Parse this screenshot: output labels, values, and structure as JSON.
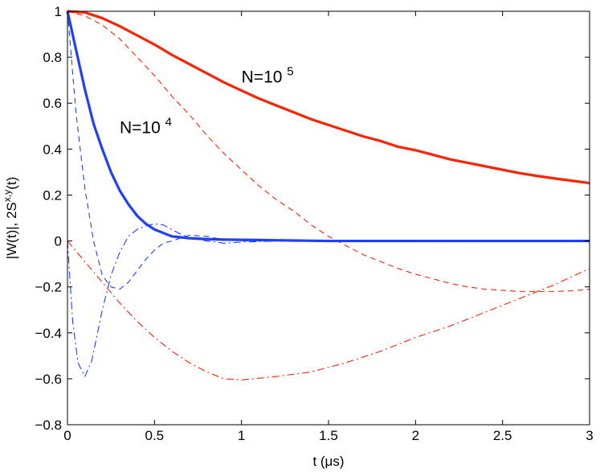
{
  "chart_data": {
    "type": "line",
    "title": "",
    "xlabel": "t (μs)",
    "ylabel_main": "|W(t)|, 2S",
    "ylabel_sup": "x,y",
    "ylabel_tail": "(t)",
    "xlim": [
      0,
      3
    ],
    "ylim": [
      -0.8,
      1
    ],
    "grid": false,
    "legend": "none",
    "x_ticks": [
      0,
      0.5,
      1,
      1.5,
      2,
      2.5,
      3
    ],
    "x_tick_labels": [
      "0",
      "0.5",
      "1",
      "1.5",
      "2",
      "2.5",
      "3"
    ],
    "y_ticks": [
      -0.8,
      -0.6,
      -0.4,
      -0.2,
      0,
      0.2,
      0.4,
      0.6,
      0.8,
      1
    ],
    "y_tick_labels": [
      "−0.8",
      "−0.6",
      "−0.4",
      "−0.2",
      "0",
      "0.2",
      "0.4",
      "0.6",
      "0.8",
      "1"
    ],
    "annotations": [
      {
        "text": "N=10",
        "sup": "5",
        "x": 1.0,
        "y": 0.69
      },
      {
        "text": "N=10",
        "sup": "4",
        "x": 0.3,
        "y": 0.47
      }
    ],
    "series": [
      {
        "color": "#ff2200",
        "style": "solid",
        "weight": "thick",
        "x": [
          0,
          0.1,
          0.2,
          0.3,
          0.4,
          0.5,
          0.6,
          0.7,
          0.8,
          0.9,
          1.0,
          1.1,
          1.2,
          1.3,
          1.4,
          1.5,
          1.6,
          1.7,
          1.8,
          1.9,
          2.0,
          2.1,
          2.2,
          2.3,
          2.4,
          2.5,
          2.6,
          2.7,
          2.8,
          2.9,
          3.0
        ],
        "y": [
          1,
          0.995,
          0.97,
          0.935,
          0.895,
          0.855,
          0.81,
          0.77,
          0.73,
          0.69,
          0.655,
          0.62,
          0.59,
          0.56,
          0.53,
          0.505,
          0.48,
          0.455,
          0.435,
          0.41,
          0.395,
          0.375,
          0.355,
          0.34,
          0.325,
          0.31,
          0.295,
          0.283,
          0.272,
          0.262,
          0.252
        ]
      },
      {
        "color": "#ff2200",
        "style": "dash",
        "weight": "thin",
        "x": [
          0,
          0.1,
          0.2,
          0.3,
          0.4,
          0.5,
          0.6,
          0.7,
          0.8,
          0.9,
          1.0,
          1.1,
          1.2,
          1.3,
          1.4,
          1.5,
          1.6,
          1.7,
          1.8,
          1.9,
          2.0,
          2.1,
          2.2,
          2.3,
          2.4,
          2.5,
          2.6,
          2.7,
          2.8,
          2.9,
          3.0
        ],
        "y": [
          1,
          0.98,
          0.94,
          0.88,
          0.8,
          0.72,
          0.63,
          0.55,
          0.46,
          0.38,
          0.31,
          0.24,
          0.18,
          0.13,
          0.07,
          0.02,
          -0.02,
          -0.06,
          -0.09,
          -0.12,
          -0.145,
          -0.165,
          -0.185,
          -0.2,
          -0.21,
          -0.215,
          -0.22,
          -0.22,
          -0.22,
          -0.217,
          -0.21
        ]
      },
      {
        "color": "#ff2200",
        "style": "dashdot",
        "weight": "thin",
        "x": [
          0,
          0.1,
          0.2,
          0.3,
          0.4,
          0.5,
          0.6,
          0.7,
          0.8,
          0.9,
          1.0,
          1.2,
          1.4,
          1.6,
          1.8,
          2.0,
          2.2,
          2.4,
          2.6,
          2.8,
          3.0
        ],
        "y": [
          0,
          -0.09,
          -0.18,
          -0.27,
          -0.35,
          -0.42,
          -0.48,
          -0.53,
          -0.57,
          -0.6,
          -0.605,
          -0.59,
          -0.57,
          -0.53,
          -0.48,
          -0.42,
          -0.37,
          -0.31,
          -0.25,
          -0.19,
          -0.12
        ]
      },
      {
        "color": "#1f3fff",
        "style": "solid",
        "weight": "thick",
        "x": [
          0,
          0.05,
          0.1,
          0.15,
          0.2,
          0.25,
          0.3,
          0.35,
          0.4,
          0.45,
          0.5,
          0.55,
          0.6,
          0.7,
          0.8,
          0.9,
          1.0,
          1.1,
          1.2,
          1.3,
          1.5,
          2.0,
          2.5,
          3.0
        ],
        "y": [
          1,
          0.83,
          0.66,
          0.51,
          0.4,
          0.3,
          0.22,
          0.16,
          0.11,
          0.075,
          0.05,
          0.035,
          0.02,
          0.012,
          0.008,
          0.006,
          0.005,
          0.004,
          0.003,
          0.002,
          0,
          0,
          0,
          0
        ]
      },
      {
        "color": "#1f3fff",
        "style": "dash",
        "weight": "thin",
        "x": [
          0,
          0.05,
          0.1,
          0.15,
          0.2,
          0.25,
          0.3,
          0.35,
          0.4,
          0.45,
          0.5,
          0.55,
          0.6,
          0.7,
          0.8,
          0.9,
          1.0,
          1.2,
          1.5,
          2.0,
          2.5,
          3.0
        ],
        "y": [
          1,
          0.55,
          0.23,
          0.0,
          -0.15,
          -0.2,
          -0.21,
          -0.18,
          -0.13,
          -0.08,
          -0.04,
          -0.01,
          0.0,
          0.025,
          0.02,
          0.005,
          0,
          0,
          0,
          0,
          0,
          0
        ]
      },
      {
        "color": "#1f3fff",
        "style": "dashdot",
        "weight": "thin",
        "x": [
          0,
          0.03,
          0.06,
          0.1,
          0.14,
          0.2,
          0.25,
          0.3,
          0.35,
          0.4,
          0.45,
          0.5,
          0.55,
          0.6,
          0.65,
          0.7,
          0.8,
          0.9,
          1.0,
          1.2,
          1.5,
          2.0,
          2.5,
          3.0
        ],
        "y": [
          0,
          -0.35,
          -0.53,
          -0.59,
          -0.52,
          -0.3,
          -0.15,
          -0.05,
          0.02,
          0.05,
          0.065,
          0.075,
          0.07,
          0.05,
          0.03,
          0.015,
          0.0,
          -0.01,
          -0.005,
          0,
          0,
          0,
          0,
          0
        ]
      }
    ]
  }
}
